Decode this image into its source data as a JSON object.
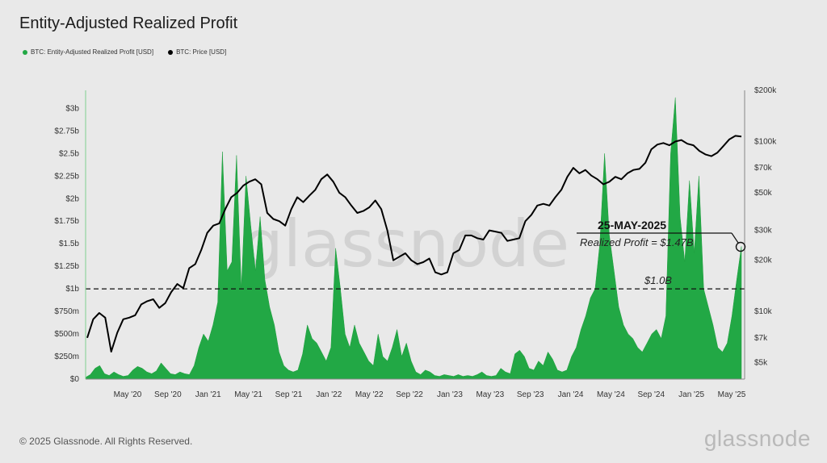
{
  "title": "Entity-Adjusted Realized Profit",
  "legend": [
    {
      "label": "BTC: Entity-Adjusted Realized Profit [USD]",
      "color": "#22a845"
    },
    {
      "label": "BTC: Price [USD]",
      "color": "#000000"
    }
  ],
  "footer": {
    "copyright": "© 2025 Glassnode. All Rights Reserved.",
    "brand": "glassnode"
  },
  "watermark": "glassnode",
  "chart_data": {
    "type": "area",
    "x_ticks": [
      "May '20",
      "Sep '20",
      "Jan '21",
      "May '21",
      "Sep '21",
      "Jan '22",
      "May '22",
      "Sep '22",
      "Jan '23",
      "May '23",
      "Sep '23",
      "Jan '24",
      "May '24",
      "Sep '24",
      "Jan '25",
      "May '25"
    ],
    "y_left_ticks": [
      "$0",
      "$250m",
      "$500m",
      "$750m",
      "$1b",
      "$1.25b",
      "$1.5b",
      "$1.75b",
      "$2b",
      "$2.25b",
      "$2.5b",
      "$2.75b",
      "$3b"
    ],
    "y_right_ticks": [
      "$5k",
      "$7k",
      "$10k",
      "$20k",
      "$30k",
      "$50k",
      "$70k",
      "$100k",
      "$200k"
    ],
    "ylim_left": [
      0,
      3.2
    ],
    "ylim_right": [
      4000,
      200000
    ],
    "right_axis_scale": "log",
    "reference_line": {
      "value": 1.0,
      "label": "$1.0B"
    },
    "annotation": {
      "date": "25-MAY-2025",
      "text": "Realized Profit = $1.47B"
    },
    "series": [
      {
        "name": "BTC: Entity-Adjusted Realized Profit [USD]",
        "color": "#22a845",
        "points": [
          [
            0,
            0.02
          ],
          [
            1,
            0.05
          ],
          [
            2,
            0.12
          ],
          [
            3,
            0.15
          ],
          [
            4,
            0.06
          ],
          [
            5,
            0.04
          ],
          [
            6,
            0.08
          ],
          [
            7,
            0.05
          ],
          [
            8,
            0.03
          ],
          [
            9,
            0.04
          ],
          [
            10,
            0.1
          ],
          [
            11,
            0.14
          ],
          [
            12,
            0.12
          ],
          [
            13,
            0.08
          ],
          [
            14,
            0.06
          ],
          [
            15,
            0.09
          ],
          [
            16,
            0.18
          ],
          [
            17,
            0.12
          ],
          [
            18,
            0.06
          ],
          [
            19,
            0.05
          ],
          [
            20,
            0.08
          ],
          [
            21,
            0.06
          ],
          [
            22,
            0.05
          ],
          [
            23,
            0.15
          ],
          [
            24,
            0.35
          ],
          [
            25,
            0.5
          ],
          [
            26,
            0.42
          ],
          [
            27,
            0.6
          ],
          [
            28,
            0.85
          ],
          [
            29,
            2.52
          ],
          [
            30,
            1.2
          ],
          [
            31,
            1.3
          ],
          [
            32,
            2.48
          ],
          [
            33,
            1.0
          ],
          [
            34,
            2.25
          ],
          [
            35,
            1.7
          ],
          [
            36,
            1.2
          ],
          [
            37,
            1.8
          ],
          [
            38,
            1.1
          ],
          [
            39,
            0.8
          ],
          [
            40,
            0.6
          ],
          [
            41,
            0.3
          ],
          [
            42,
            0.15
          ],
          [
            43,
            0.1
          ],
          [
            44,
            0.08
          ],
          [
            45,
            0.1
          ],
          [
            46,
            0.28
          ],
          [
            47,
            0.6
          ],
          [
            48,
            0.45
          ],
          [
            49,
            0.4
          ],
          [
            50,
            0.3
          ],
          [
            51,
            0.2
          ],
          [
            52,
            0.35
          ],
          [
            53,
            1.45
          ],
          [
            54,
            1.0
          ],
          [
            55,
            0.5
          ],
          [
            56,
            0.35
          ],
          [
            57,
            0.6
          ],
          [
            58,
            0.4
          ],
          [
            59,
            0.3
          ],
          [
            60,
            0.2
          ],
          [
            61,
            0.15
          ],
          [
            62,
            0.5
          ],
          [
            63,
            0.25
          ],
          [
            64,
            0.2
          ],
          [
            65,
            0.35
          ],
          [
            66,
            0.55
          ],
          [
            67,
            0.25
          ],
          [
            68,
            0.4
          ],
          [
            69,
            0.2
          ],
          [
            70,
            0.08
          ],
          [
            71,
            0.05
          ],
          [
            72,
            0.1
          ],
          [
            73,
            0.08
          ],
          [
            74,
            0.04
          ],
          [
            75,
            0.03
          ],
          [
            76,
            0.05
          ],
          [
            77,
            0.04
          ],
          [
            78,
            0.03
          ],
          [
            79,
            0.05
          ],
          [
            80,
            0.03
          ],
          [
            81,
            0.04
          ],
          [
            82,
            0.03
          ],
          [
            83,
            0.05
          ],
          [
            84,
            0.08
          ],
          [
            85,
            0.04
          ],
          [
            86,
            0.03
          ],
          [
            87,
            0.04
          ],
          [
            88,
            0.12
          ],
          [
            89,
            0.08
          ],
          [
            90,
            0.06
          ],
          [
            91,
            0.28
          ],
          [
            92,
            0.32
          ],
          [
            93,
            0.25
          ],
          [
            94,
            0.12
          ],
          [
            95,
            0.1
          ],
          [
            96,
            0.2
          ],
          [
            97,
            0.15
          ],
          [
            98,
            0.3
          ],
          [
            99,
            0.22
          ],
          [
            100,
            0.1
          ],
          [
            101,
            0.08
          ],
          [
            102,
            0.1
          ],
          [
            103,
            0.25
          ],
          [
            104,
            0.35
          ],
          [
            105,
            0.55
          ],
          [
            106,
            0.7
          ],
          [
            107,
            0.9
          ],
          [
            108,
            1.0
          ],
          [
            109,
            1.5
          ],
          [
            110,
            2.5
          ],
          [
            111,
            1.6
          ],
          [
            112,
            1.2
          ],
          [
            113,
            0.8
          ],
          [
            114,
            0.6
          ],
          [
            115,
            0.5
          ],
          [
            116,
            0.45
          ],
          [
            117,
            0.35
          ],
          [
            118,
            0.3
          ],
          [
            119,
            0.4
          ],
          [
            120,
            0.5
          ],
          [
            121,
            0.55
          ],
          [
            122,
            0.45
          ],
          [
            123,
            0.7
          ],
          [
            124,
            2.5
          ],
          [
            125,
            3.12
          ],
          [
            126,
            1.8
          ],
          [
            127,
            1.3
          ],
          [
            128,
            2.2
          ],
          [
            129,
            1.4
          ],
          [
            130,
            2.25
          ],
          [
            131,
            1.0
          ],
          [
            132,
            0.8
          ],
          [
            133,
            0.6
          ],
          [
            134,
            0.35
          ],
          [
            135,
            0.3
          ],
          [
            136,
            0.4
          ],
          [
            137,
            0.7
          ],
          [
            138,
            1.1
          ],
          [
            139,
            1.47
          ]
        ]
      },
      {
        "name": "BTC: Price [USD]",
        "color": "#000000",
        "points": [
          [
            0,
            7000
          ],
          [
            1,
            9000
          ],
          [
            2,
            9800
          ],
          [
            3,
            9200
          ],
          [
            4,
            5800
          ],
          [
            5,
            7500
          ],
          [
            6,
            9000
          ],
          [
            7,
            9200
          ],
          [
            8,
            9500
          ],
          [
            9,
            11000
          ],
          [
            10,
            11500
          ],
          [
            11,
            11800
          ],
          [
            12,
            10500
          ],
          [
            13,
            11200
          ],
          [
            14,
            13000
          ],
          [
            15,
            14500
          ],
          [
            16,
            13700
          ],
          [
            17,
            18000
          ],
          [
            18,
            19000
          ],
          [
            19,
            23000
          ],
          [
            20,
            29000
          ],
          [
            21,
            32000
          ],
          [
            22,
            33000
          ],
          [
            23,
            40000
          ],
          [
            24,
            47000
          ],
          [
            25,
            50000
          ],
          [
            26,
            55000
          ],
          [
            27,
            58000
          ],
          [
            28,
            60000
          ],
          [
            29,
            56000
          ],
          [
            30,
            38000
          ],
          [
            31,
            35000
          ],
          [
            32,
            34000
          ],
          [
            33,
            32000
          ],
          [
            34,
            40000
          ],
          [
            35,
            47000
          ],
          [
            36,
            44000
          ],
          [
            37,
            48000
          ],
          [
            38,
            52000
          ],
          [
            39,
            60000
          ],
          [
            40,
            64000
          ],
          [
            41,
            58000
          ],
          [
            42,
            50000
          ],
          [
            43,
            47000
          ],
          [
            44,
            42000
          ],
          [
            45,
            38000
          ],
          [
            46,
            39000
          ],
          [
            47,
            41000
          ],
          [
            48,
            45000
          ],
          [
            49,
            40000
          ],
          [
            50,
            30000
          ],
          [
            51,
            20000
          ],
          [
            52,
            21000
          ],
          [
            53,
            22000
          ],
          [
            54,
            20000
          ],
          [
            55,
            19000
          ],
          [
            56,
            19500
          ],
          [
            57,
            20500
          ],
          [
            58,
            17000
          ],
          [
            59,
            16500
          ],
          [
            60,
            17000
          ],
          [
            61,
            22000
          ],
          [
            62,
            23000
          ],
          [
            63,
            28000
          ],
          [
            64,
            28000
          ],
          [
            65,
            27000
          ],
          [
            66,
            26500
          ],
          [
            67,
            30000
          ],
          [
            68,
            29500
          ],
          [
            69,
            29000
          ],
          [
            70,
            26000
          ],
          [
            71,
            26500
          ],
          [
            72,
            27000
          ],
          [
            73,
            34000
          ],
          [
            74,
            37000
          ],
          [
            75,
            42000
          ],
          [
            76,
            43000
          ],
          [
            77,
            42000
          ],
          [
            78,
            47000
          ],
          [
            79,
            52000
          ],
          [
            80,
            62000
          ],
          [
            81,
            70000
          ],
          [
            82,
            65000
          ],
          [
            83,
            68000
          ],
          [
            84,
            63000
          ],
          [
            85,
            60000
          ],
          [
            86,
            56000
          ],
          [
            87,
            58000
          ],
          [
            88,
            62000
          ],
          [
            89,
            60000
          ],
          [
            90,
            65000
          ],
          [
            91,
            68000
          ],
          [
            92,
            69000
          ],
          [
            93,
            75000
          ],
          [
            94,
            90000
          ],
          [
            95,
            96000
          ],
          [
            96,
            98000
          ],
          [
            97,
            95000
          ],
          [
            98,
            100000
          ],
          [
            99,
            102000
          ],
          [
            100,
            97000
          ],
          [
            101,
            95000
          ],
          [
            102,
            88000
          ],
          [
            103,
            84000
          ],
          [
            104,
            82000
          ],
          [
            105,
            86000
          ],
          [
            106,
            94000
          ],
          [
            107,
            103000
          ],
          [
            108,
            108000
          ],
          [
            109,
            107000
          ]
        ]
      }
    ]
  }
}
